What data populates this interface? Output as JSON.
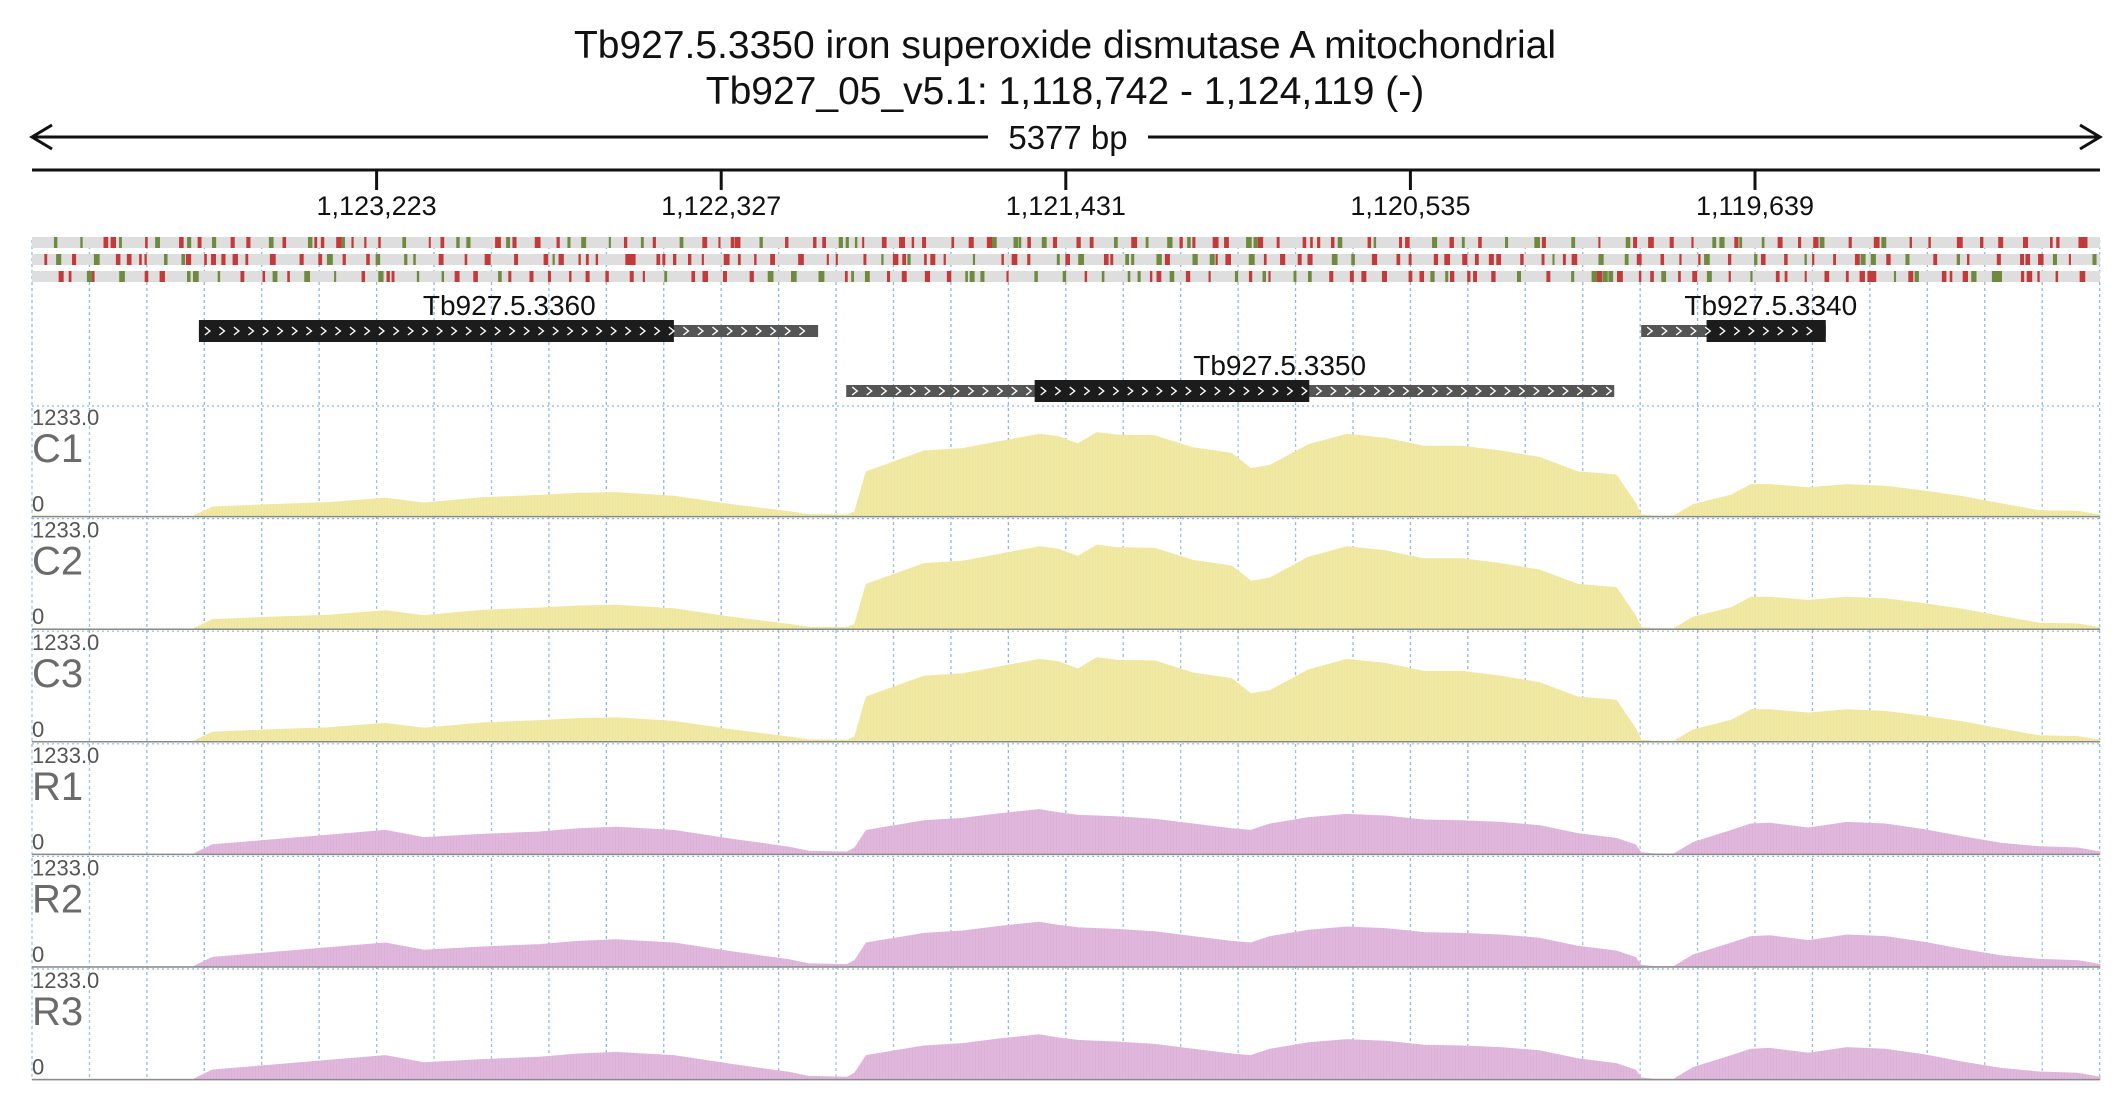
{
  "header": {
    "title": "Tb927.5.3350  iron superoxide dismutase A  mitochondrial",
    "location": "Tb927_05_v5.1: 1,118,742 - 1,124,119 (-)",
    "span": "5377 bp"
  },
  "colors": {
    "condition_fill": "#eee69a",
    "replicate_fill": "#dcb0d8",
    "gene_utr": "#555555",
    "gene_cds": "#1c1c1c",
    "variant_red": "#c23a3a",
    "variant_green": "#6f8a3e",
    "variant_row_bg": "#dedede",
    "grid": "#8fb8de"
  },
  "chart_data": {
    "type": "area",
    "x_axis": {
      "orientation": "reverse",
      "start": 1124119,
      "end": 1118742,
      "ticks": [
        {
          "value": 1123223,
          "label": "1,123,223"
        },
        {
          "value": 1122327,
          "label": "1,122,327"
        },
        {
          "value": 1121431,
          "label": "1,121,431"
        },
        {
          "value": 1120535,
          "label": "1,120,535"
        },
        {
          "value": 1119639,
          "label": "1,119,639"
        }
      ]
    },
    "genes": [
      {
        "name": "Tb927.5.3360",
        "row": 0,
        "start": 1123685,
        "end": 1122075,
        "cds_start": 1123685,
        "cds_end": 1122450,
        "label_pos": 1122878
      },
      {
        "name": "Tb927.5.3340",
        "row": 0,
        "start": 1119935,
        "end": 1119455,
        "cds_start": 1119765,
        "cds_end": 1119455,
        "label_pos": 1119598
      },
      {
        "name": "Tb927.5.3350",
        "row": 1,
        "start": 1122002,
        "end": 1120005,
        "cds_start": 1121512,
        "cds_end": 1120798,
        "label_pos": 1120875
      }
    ],
    "tracks": [
      {
        "name": "C1",
        "group": "condition",
        "min_label": "0",
        "max_label": "1233.0",
        "ymax": 1233.0
      },
      {
        "name": "C2",
        "group": "condition",
        "min_label": "0",
        "max_label": "1233.0",
        "ymax": 1233.0
      },
      {
        "name": "C3",
        "group": "condition",
        "min_label": "0",
        "max_label": "1233.0",
        "ymax": 1233.0
      },
      {
        "name": "R1",
        "group": "replicate",
        "min_label": "0",
        "max_label": "1233.0",
        "ymax": 1233.0
      },
      {
        "name": "R2",
        "group": "replicate",
        "min_label": "0",
        "max_label": "1233.0",
        "ymax": 1233.0
      },
      {
        "name": "R3",
        "group": "replicate",
        "min_label": "0",
        "max_label": "1233.0",
        "ymax": 1233.0
      }
    ],
    "coverage_profiles": {
      "condition": {
        "x": [
          1124119,
          1123995,
          1123700,
          1123650,
          1123500,
          1123350,
          1123200,
          1123100,
          1122950,
          1122800,
          1122700,
          1122600,
          1122450,
          1122300,
          1122150,
          1122100,
          1122000,
          1121980,
          1121950,
          1121800,
          1121700,
          1121600,
          1121500,
          1121450,
          1121400,
          1121350,
          1121300,
          1121200,
          1121100,
          1121000,
          1120950,
          1120900,
          1120800,
          1120700,
          1120600,
          1120500,
          1120400,
          1120300,
          1120200,
          1120100,
          1120000,
          1119950,
          1119935,
          1119900,
          1119850,
          1119800,
          1119700,
          1119650,
          1119600,
          1119500,
          1119400,
          1119300,
          1119200,
          1119100,
          1119000,
          1118900,
          1118800,
          1118742
        ],
        "y": [
          8,
          4,
          4,
          120,
          150,
          175,
          230,
          170,
          235,
          265,
          290,
          300,
          255,
          150,
          60,
          25,
          20,
          60,
          560,
          820,
          850,
          940,
          1030,
          1000,
          910,
          1050,
          1020,
          1010,
          860,
          790,
          600,
          640,
          900,
          1030,
          980,
          880,
          880,
          820,
          740,
          560,
          520,
          170,
          20,
          8,
          8,
          150,
          270,
          400,
          400,
          360,
          400,
          380,
          320,
          250,
          160,
          75,
          65,
          20
        ]
      },
      "replicate": {
        "x": [
          1124119,
          1123995,
          1123700,
          1123650,
          1123500,
          1123350,
          1123200,
          1123100,
          1122950,
          1122800,
          1122700,
          1122600,
          1122450,
          1122300,
          1122150,
          1122100,
          1122000,
          1121980,
          1121950,
          1121800,
          1121700,
          1121600,
          1121500,
          1121450,
          1121400,
          1121350,
          1121300,
          1121200,
          1121100,
          1121000,
          1120950,
          1120900,
          1120800,
          1120700,
          1120600,
          1120500,
          1120400,
          1120300,
          1120200,
          1120100,
          1120000,
          1119950,
          1119935,
          1119900,
          1119850,
          1119800,
          1119700,
          1119650,
          1119600,
          1119500,
          1119400,
          1119300,
          1119200,
          1119100,
          1119000,
          1118900,
          1118800,
          1118742
        ],
        "y": [
          5,
          3,
          3,
          120,
          180,
          240,
          300,
          210,
          250,
          280,
          320,
          340,
          300,
          190,
          90,
          40,
          30,
          80,
          300,
          420,
          450,
          510,
          560,
          520,
          490,
          480,
          470,
          440,
          380,
          320,
          300,
          380,
          460,
          500,
          480,
          430,
          420,
          400,
          360,
          260,
          200,
          120,
          20,
          5,
          5,
          150,
          300,
          380,
          390,
          330,
          400,
          380,
          310,
          220,
          140,
          95,
          80,
          30
        ]
      }
    }
  }
}
